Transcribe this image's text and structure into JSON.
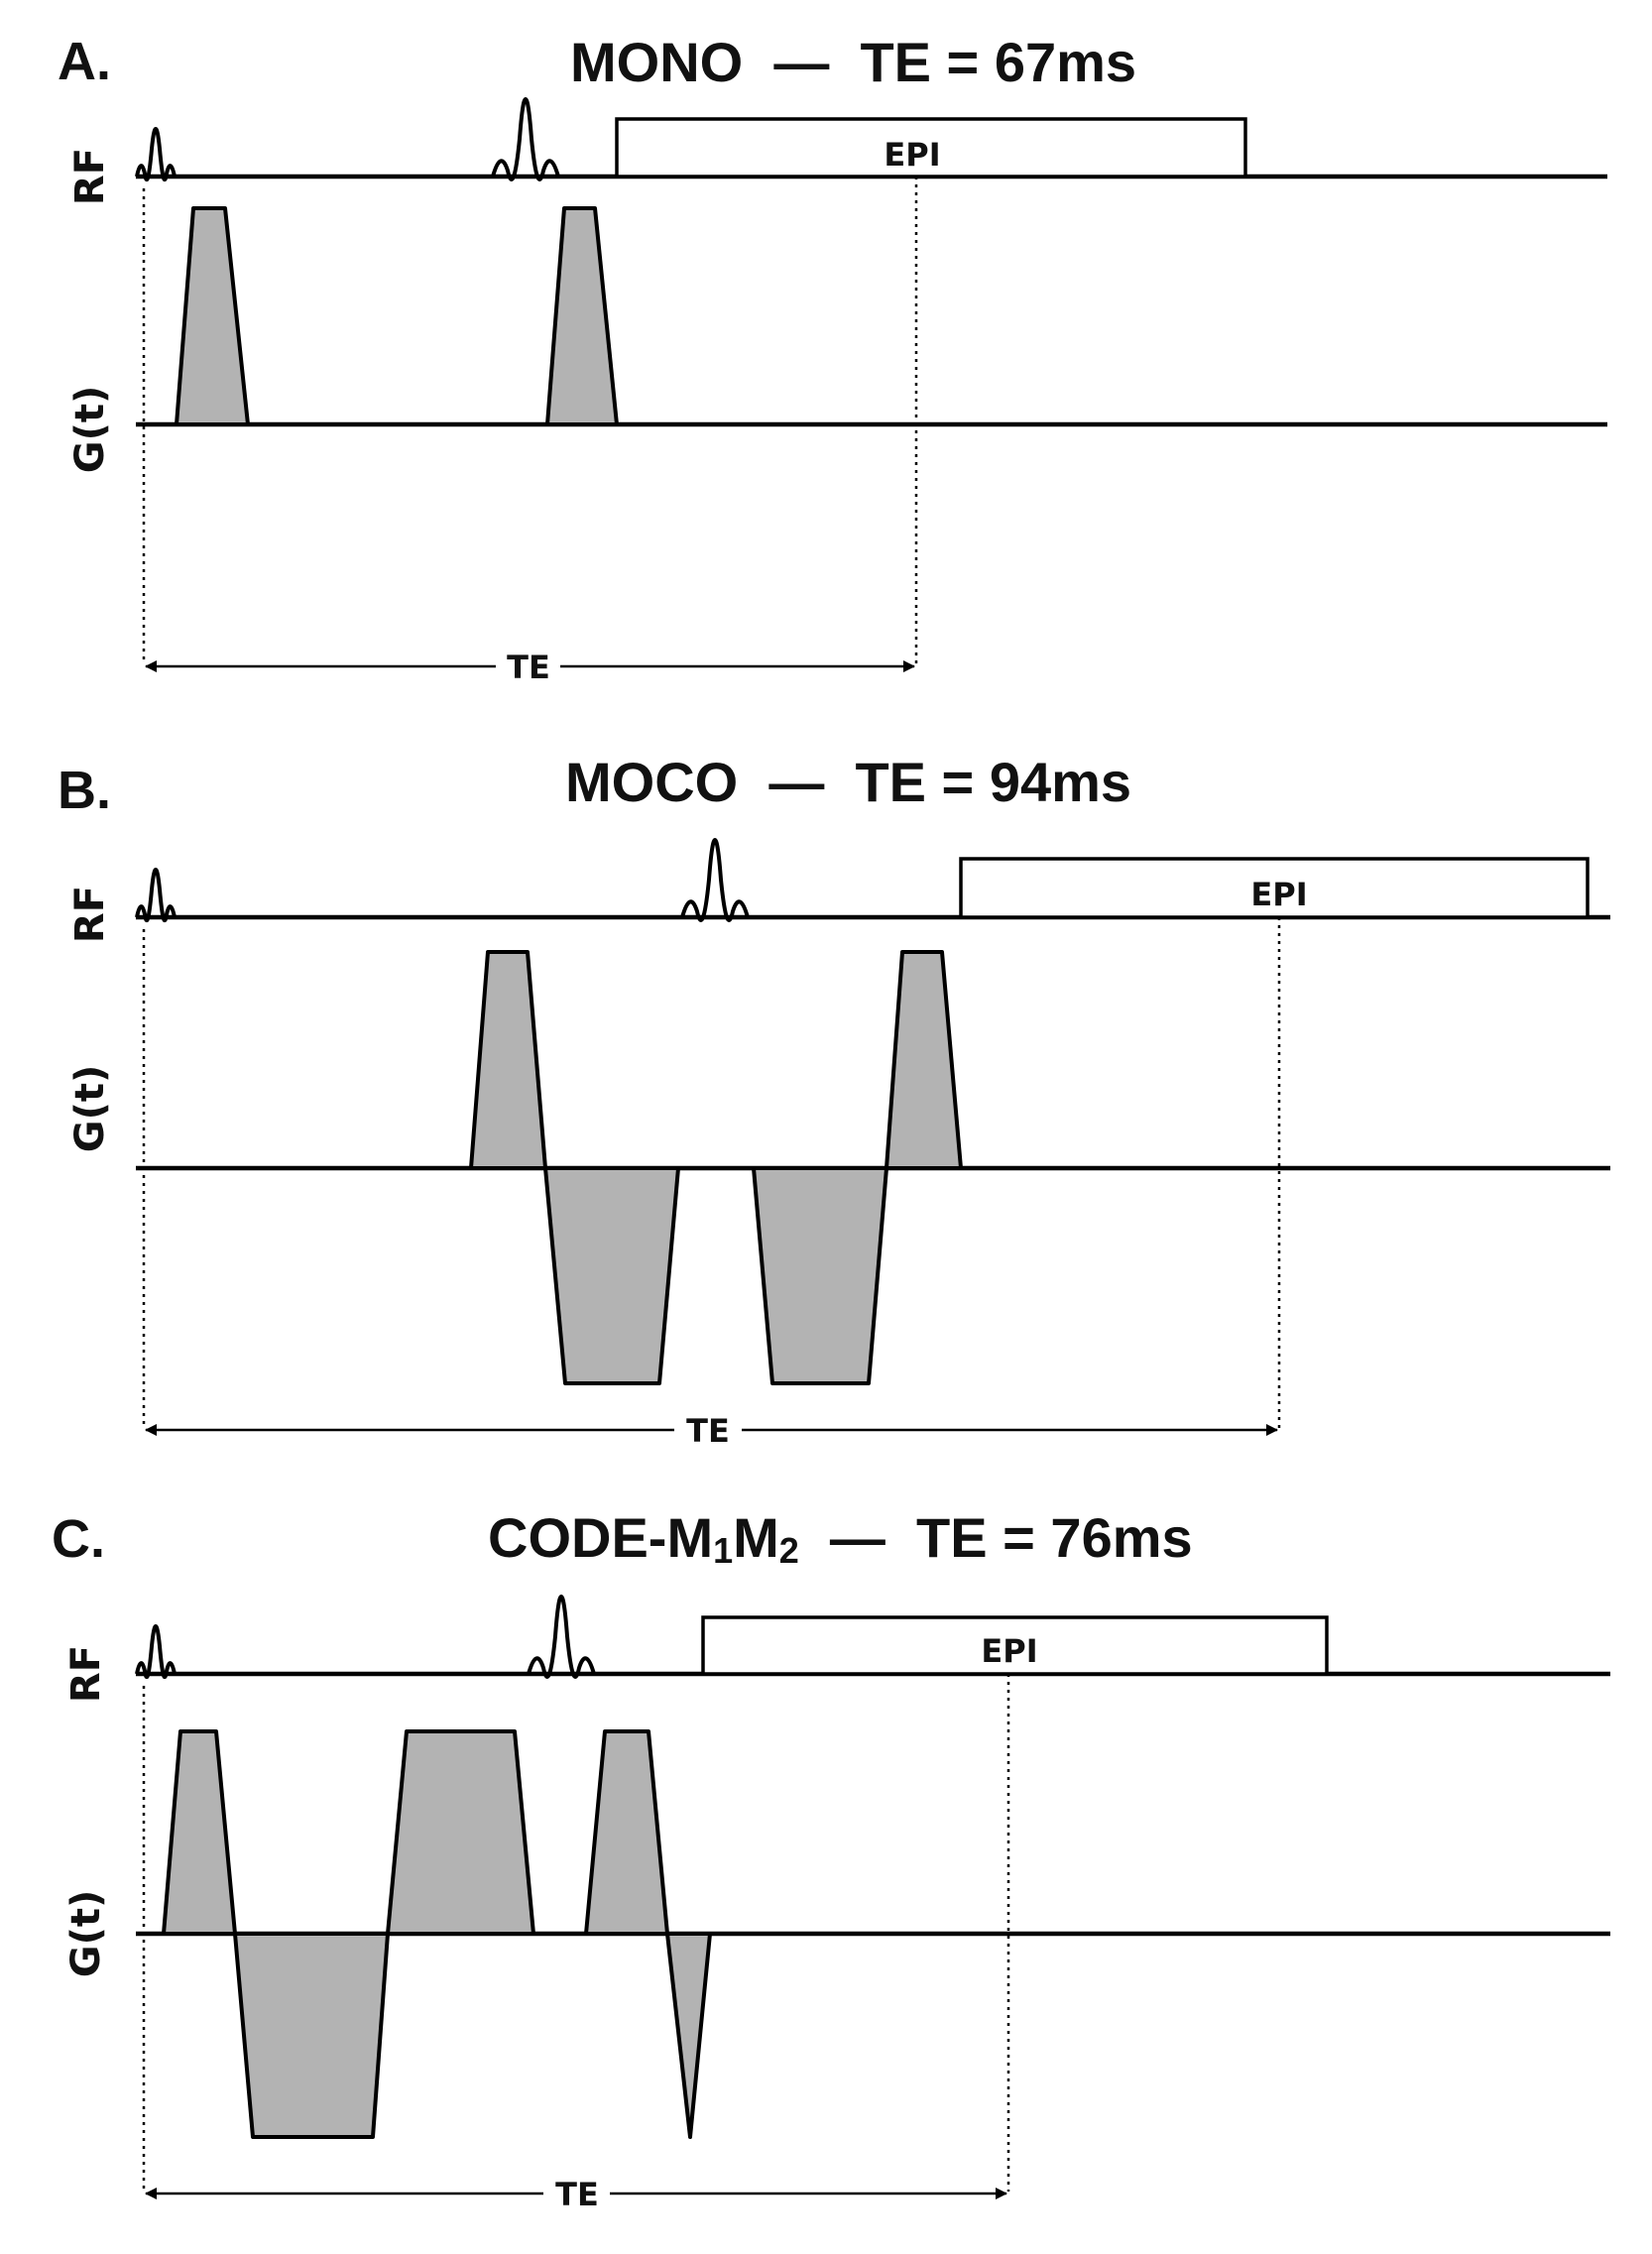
{
  "panels": [
    {
      "letter": "A.",
      "title": "MONO  —  TE = 67ms"
    },
    {
      "letter": "B.",
      "title": "MOCO  —  TE = 94ms"
    },
    {
      "letter": "C.",
      "title_main": "CODE-M",
      "title_sub1": "1",
      "title_mid": "M",
      "title_sub2": "2",
      "title_tail": "  —  TE = 76ms"
    }
  ],
  "labels": {
    "rf": "RF",
    "gradient": "G(t)",
    "epi": "EPI",
    "te": "TE"
  }
}
